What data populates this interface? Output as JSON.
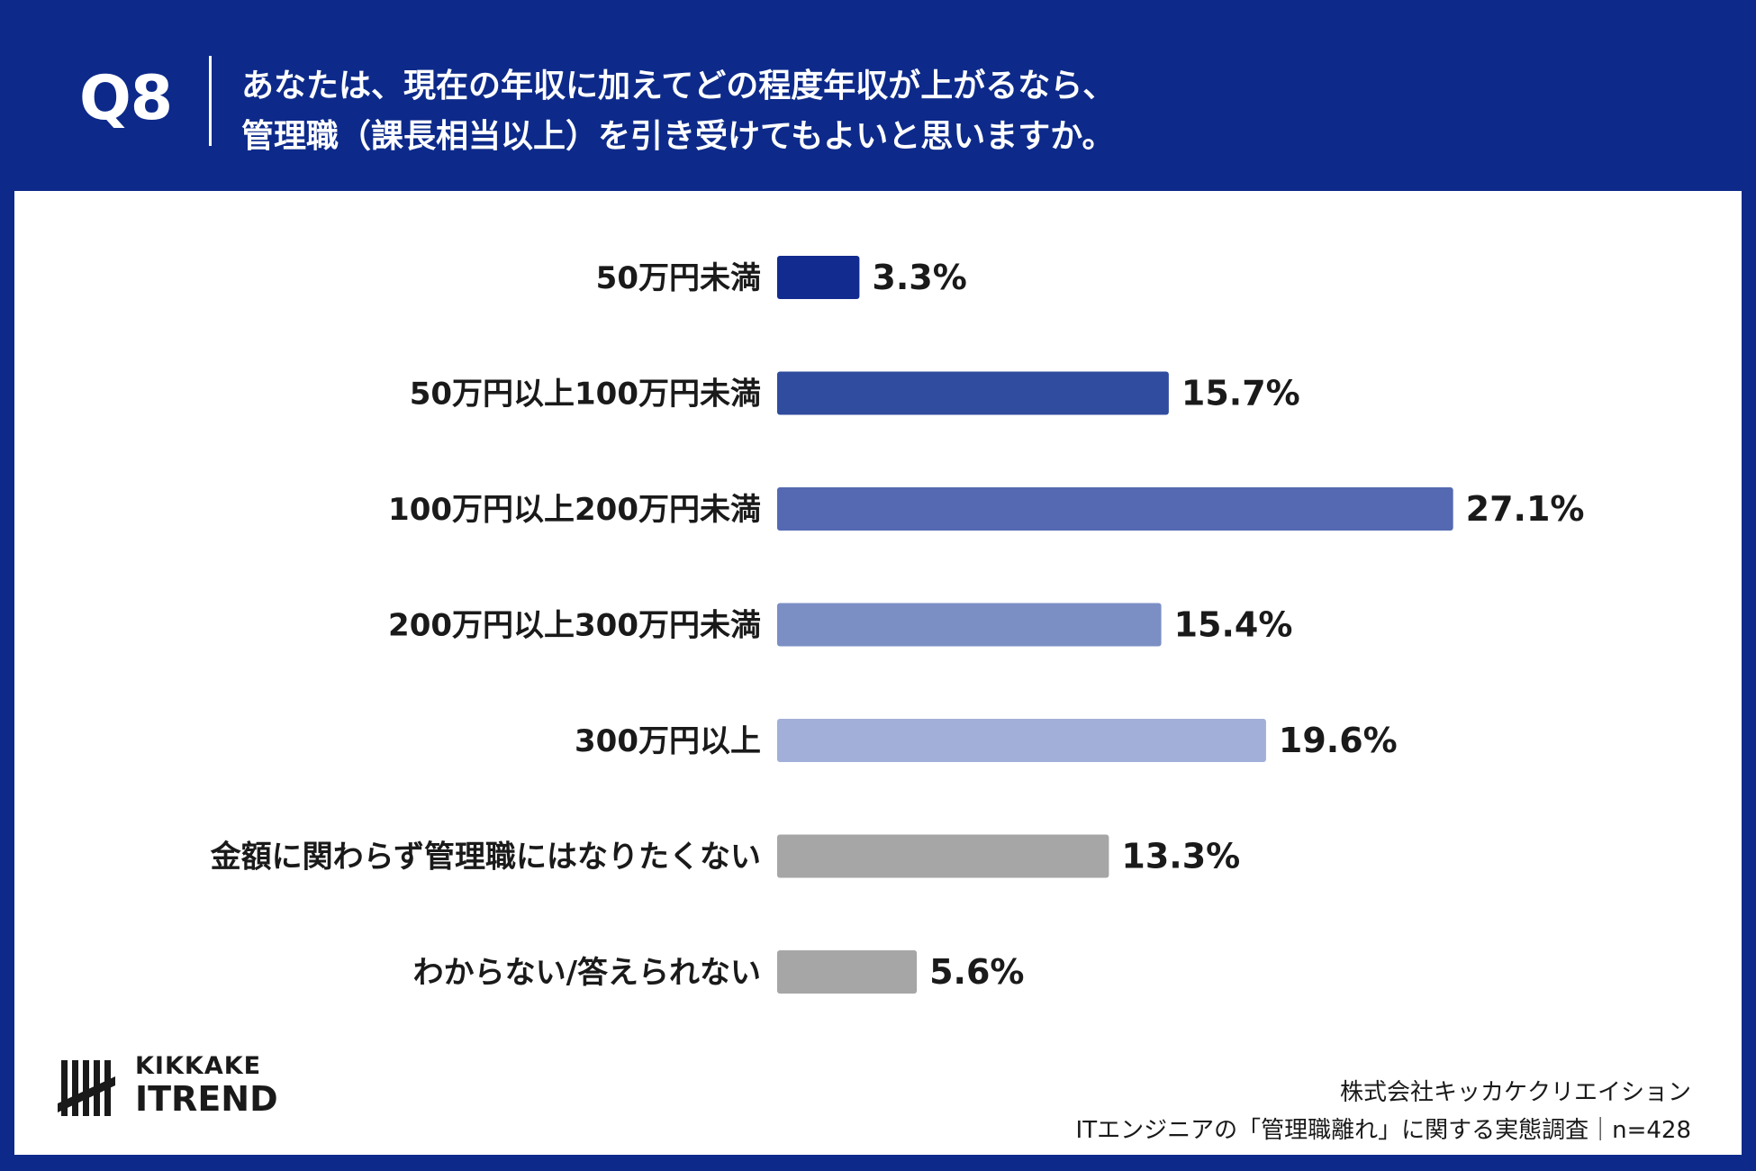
{
  "header": {
    "q_label": "Q8",
    "question_line1": "あなたは、現在の年収に加えてどの程度年収が上がるなら、",
    "question_line2": "管理職（課長相当以上）を引き受けてもよいと思いますか。"
  },
  "colors": {
    "background": "#0d2a8a",
    "panel": "#ffffff",
    "bars": [
      "#112b8f",
      "#304c9e",
      "#5469b1",
      "#7b8fc4",
      "#a2afd9",
      "#a6a6a6",
      "#a6a6a6"
    ]
  },
  "chart_data": {
    "type": "bar",
    "orientation": "horizontal",
    "categories": [
      "50万円未満",
      "50万円以上100万円未満",
      "100万円以上200万円未満",
      "200万円以上300万円未満",
      "300万円以上",
      "金額に関わらず管理職にはなりたくない",
      "わからない/答えられない"
    ],
    "values": [
      3.3,
      15.7,
      27.1,
      15.4,
      19.6,
      13.3,
      5.6
    ],
    "value_labels": [
      "3.3%",
      "15.7%",
      "27.1%",
      "15.4%",
      "19.6%",
      "13.3%",
      "5.6%"
    ],
    "unit": "%",
    "grid": false,
    "legend": "none"
  },
  "logo": {
    "line1": "KIKKAKE",
    "line2": "ITREND"
  },
  "credit": {
    "line1": "株式会社キッカケクリエイション",
    "line2": "ITエンジニアの「管理職離れ」に関する実態調査｜n=428"
  }
}
